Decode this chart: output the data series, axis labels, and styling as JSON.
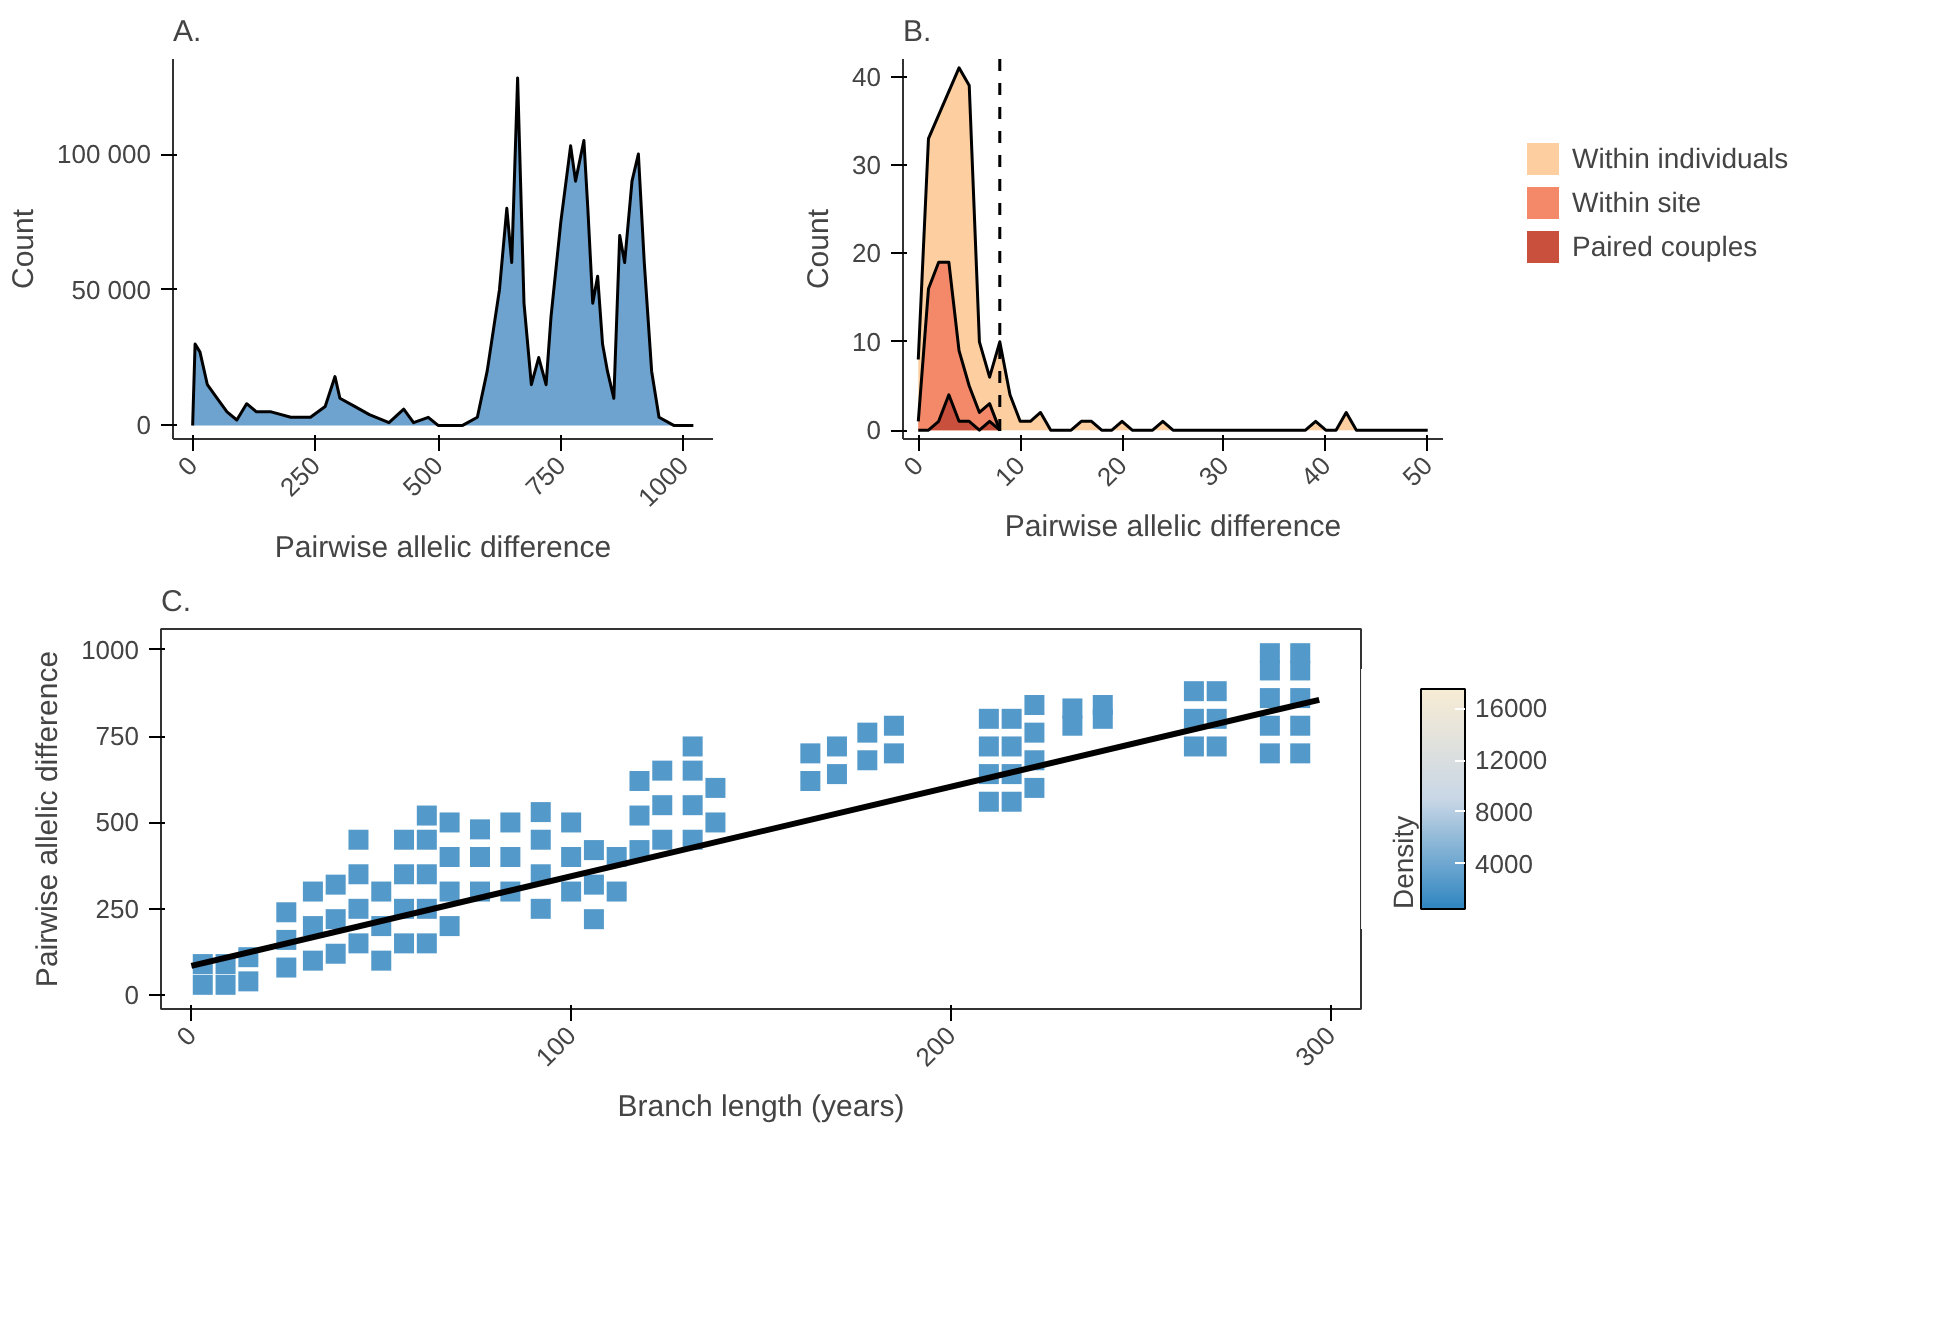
{
  "chart_data": [
    {
      "type": "area",
      "title": "A.",
      "xlabel": "Pairwise allelic difference",
      "ylabel": "Count",
      "xlim": [
        -40,
        1060
      ],
      "ylim": [
        -5000,
        135000
      ],
      "xticks": [
        0,
        250,
        500,
        750,
        1000
      ],
      "yticks": [
        0,
        {
          "value": 50000,
          "label": "50 000"
        },
        {
          "value": 100000,
          "label": "100 000"
        }
      ],
      "grid": false,
      "legend": false,
      "series": [
        {
          "color": "#6fa3cf",
          "x": [
            0,
            5,
            15,
            30,
            50,
            70,
            90,
            110,
            130,
            160,
            200,
            240,
            270,
            290,
            300,
            330,
            360,
            400,
            430,
            450,
            480,
            500,
            550,
            580,
            600,
            625,
            640,
            650,
            662,
            675,
            690,
            705,
            720,
            730,
            750,
            770,
            780,
            797,
            805,
            815,
            825,
            835,
            845,
            858,
            870,
            880,
            895,
            908,
            920,
            935,
            950,
            980,
            1020
          ],
          "values": [
            0,
            30000,
            27000,
            15000,
            10000,
            5000,
            2000,
            8000,
            5000,
            5000,
            3000,
            3000,
            7000,
            18000,
            10000,
            7000,
            4000,
            1000,
            6000,
            1000,
            3000,
            0,
            0,
            3000,
            20000,
            50000,
            80000,
            60000,
            128000,
            45000,
            15000,
            25000,
            15000,
            40000,
            75000,
            103000,
            90000,
            105000,
            80000,
            45000,
            55000,
            30000,
            20000,
            10000,
            70000,
            60000,
            90000,
            100000,
            60000,
            20000,
            3000,
            0,
            0
          ]
        }
      ]
    },
    {
      "type": "area",
      "title": "B.",
      "xlabel": "Pairwise allelic difference",
      "ylabel": "Count",
      "xlim": [
        -1.5,
        51.5
      ],
      "ylim": [
        -1,
        42
      ],
      "xticks": [
        0,
        10,
        20,
        30,
        40,
        50
      ],
      "yticks": [
        0,
        10,
        20,
        30,
        40
      ],
      "grid": false,
      "legend": "right",
      "ref_lines": [
        {
          "axis": "x",
          "value": 8,
          "line_style": "dashed",
          "color": "#000000"
        }
      ],
      "series": [
        {
          "name": "Within individuals",
          "color": "#fdcfa0",
          "x": [
            0,
            1,
            4,
            5,
            6,
            7,
            8,
            9,
            10,
            11,
            12,
            13,
            15,
            16,
            17,
            18,
            19,
            20,
            21,
            23,
            24,
            25,
            38,
            39,
            40,
            41,
            42,
            43,
            50
          ],
          "values": [
            8,
            33,
            41,
            39,
            10,
            6,
            10,
            4,
            1,
            1,
            2,
            0,
            0,
            1,
            1,
            0,
            0,
            1,
            0,
            0,
            1,
            0,
            0,
            1,
            0,
            0,
            2,
            0,
            0
          ]
        },
        {
          "name": "Within site",
          "color": "#f4896a",
          "x": [
            0,
            1,
            2,
            3,
            4,
            5,
            6,
            7,
            8
          ],
          "values": [
            1,
            16,
            19,
            19,
            9,
            5,
            2,
            3,
            0
          ]
        },
        {
          "name": "Paired couples",
          "color": "#c9503c",
          "x": [
            0,
            1,
            2,
            3,
            4,
            5,
            6,
            7,
            8
          ],
          "values": [
            0,
            0,
            1,
            4,
            1,
            1,
            0,
            1,
            0
          ]
        }
      ]
    },
    {
      "type": "scatter",
      "title": "C.",
      "xlabel": "Branch length (years)",
      "ylabel": "Pairwise allelic difference",
      "clabel": "Density",
      "xlim": [
        -8,
        308
      ],
      "ylim": [
        -40,
        1060
      ],
      "xticks": [
        0,
        100,
        200,
        300
      ],
      "yticks": [
        0,
        250,
        500,
        750,
        1000
      ],
      "clim": [
        500,
        17500
      ],
      "cticks": [
        4000,
        8000,
        12000,
        16000
      ],
      "grid": false,
      "legend": false,
      "series": [
        {
          "marker": "square",
          "x": [
            3,
            3,
            9,
            9,
            15,
            15,
            25,
            25,
            25,
            32,
            32,
            32,
            38,
            38,
            38,
            44,
            44,
            44,
            44,
            50,
            50,
            50,
            56,
            56,
            56,
            56,
            62,
            62,
            62,
            62,
            62,
            68,
            68,
            68,
            68,
            76,
            76,
            76,
            84,
            84,
            84,
            92,
            92,
            92,
            92,
            100,
            100,
            100,
            106,
            106,
            106,
            112,
            112,
            118,
            118,
            118,
            124,
            124,
            124,
            132,
            132,
            132,
            132,
            138,
            138,
            163,
            163,
            170,
            170,
            178,
            178,
            185,
            185,
            210,
            210,
            210,
            210,
            216,
            216,
            216,
            216,
            222,
            222,
            222,
            222,
            232,
            232,
            240,
            240,
            264,
            264,
            264,
            270,
            270,
            270,
            284,
            284,
            284,
            284,
            284,
            292,
            292,
            292,
            292,
            292
          ],
          "values": [
            30,
            90,
            30,
            90,
            40,
            110,
            80,
            160,
            240,
            100,
            200,
            300,
            120,
            220,
            320,
            150,
            250,
            350,
            450,
            100,
            200,
            300,
            150,
            250,
            350,
            450,
            150,
            250,
            350,
            450,
            520,
            200,
            300,
            400,
            500,
            300,
            400,
            480,
            300,
            400,
            500,
            250,
            350,
            450,
            530,
            300,
            400,
            500,
            220,
            320,
            420,
            300,
            400,
            420,
            520,
            620,
            450,
            550,
            650,
            450,
            550,
            650,
            720,
            500,
            600,
            620,
            700,
            640,
            720,
            680,
            760,
            700,
            780,
            560,
            640,
            720,
            800,
            560,
            640,
            720,
            800,
            600,
            680,
            760,
            840,
            780,
            830,
            800,
            840,
            720,
            800,
            880,
            720,
            800,
            880,
            700,
            780,
            860,
            940,
            990,
            700,
            780,
            860,
            940,
            990
          ],
          "cvalues": [
            2500,
            2500,
            2500,
            2500,
            2500,
            2500,
            2500,
            2500,
            2500,
            2500,
            2500,
            2500,
            2500,
            2500,
            2500,
            2500,
            2500,
            2500,
            2500,
            2500,
            2500,
            2500,
            2500,
            2500,
            2500,
            2500,
            2500,
            2500,
            2500,
            2500,
            2500,
            2500,
            2500,
            2500,
            2500,
            2500,
            2500,
            2500,
            2500,
            2500,
            2500,
            2500,
            2500,
            2500,
            2500,
            2500,
            2500,
            2500,
            2500,
            2500,
            2500,
            2500,
            2500,
            2500,
            2500,
            2500,
            2500,
            2500,
            2500,
            2500,
            2500,
            2500,
            2500,
            2500,
            2500,
            2500,
            2500,
            2500,
            2500,
            2500,
            2500,
            2500,
            2500,
            2500,
            2500,
            2500,
            2500,
            2500,
            2500,
            2500,
            2500,
            2500,
            2500,
            2500,
            2500,
            2500,
            2500,
            2500,
            2500,
            2500,
            2500,
            2500,
            2500,
            2500,
            2500,
            2500,
            2500,
            2500,
            2500,
            2500,
            2500,
            2500,
            2500,
            2500,
            2500
          ]
        },
        {
          "type": "line",
          "color": "#000000",
          "x": [
            0,
            297
          ],
          "values": [
            85,
            855
          ]
        }
      ]
    }
  ]
}
